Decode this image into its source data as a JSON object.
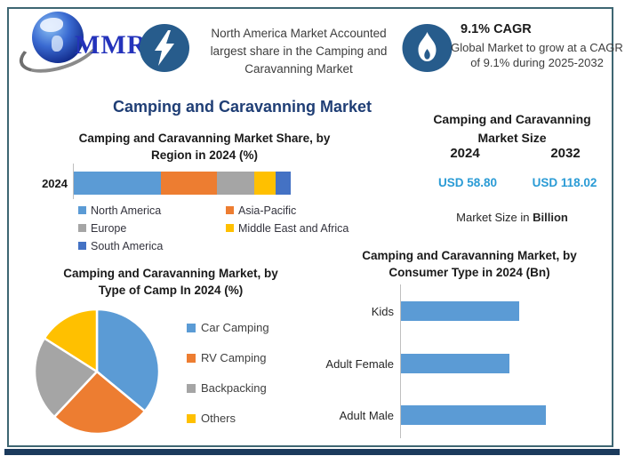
{
  "header": {
    "logo_text": "MMR",
    "badge1": {
      "icon": "lightning",
      "lines": [
        "North America Market Accounted",
        "largest share in the Camping and",
        "Caravanning Market"
      ]
    },
    "badge2": {
      "icon": "flame",
      "title": "9.1% CAGR",
      "body": "Global Market to grow at a CAGR of 9.1% during 2025-2032"
    }
  },
  "main_title": "Camping and Caravanning Market",
  "region_section": {
    "title_lines": [
      "Camping and Caravanning Market Share, by",
      "Region in 2024 (%)"
    ]
  },
  "market_size": {
    "title_lines": [
      "Camping and Caravanning",
      "Market Size"
    ],
    "columns": [
      {
        "year": "2024",
        "value": "USD 58.80"
      },
      {
        "year": "2032",
        "value": "USD 118.02"
      }
    ],
    "caption_prefix": "Market Size in",
    "caption_bold": "Billion"
  },
  "pie_section": {
    "title_lines": [
      "Camping and Caravanning Market, by",
      "Type of Camp In 2024 (%)"
    ]
  },
  "consumer_section": {
    "title_lines": [
      "Camping and Caravanning Market, by",
      "Consumer Type in 2024 (Bn)"
    ]
  },
  "colors": {
    "series_blue": "#5B9BD5",
    "series_orange": "#ED7D31",
    "series_gray": "#A5A5A5",
    "series_yellow": "#FFC000",
    "series_darkblue": "#4472C4",
    "navy_title": "#1F3E75",
    "icon_circle": "#275C8C",
    "usd_value_blue": "#2A9BD5",
    "frame_border": "#3E6672",
    "bottom_bar": "#1B3A5C"
  },
  "chart_data": [
    {
      "type": "bar",
      "subtype": "stacked-horizontal",
      "title": "Camping and Caravanning Market Share, by Region in 2024 (%)",
      "categories": [
        "2024"
      ],
      "series": [
        {
          "name": "North America",
          "color": "#5B9BD5",
          "values": [
            40
          ]
        },
        {
          "name": "Asia-Pacific",
          "color": "#ED7D31",
          "values": [
            26
          ]
        },
        {
          "name": "Europe",
          "color": "#A5A5A5",
          "values": [
            17
          ]
        },
        {
          "name": "Middle East and Africa",
          "color": "#FFC000",
          "values": [
            10
          ]
        },
        {
          "name": "South America",
          "color": "#4472C4",
          "values": [
            7
          ]
        }
      ],
      "unit": "%",
      "legend_position": "bottom"
    },
    {
      "type": "pie",
      "title": "Camping and Caravanning Market, by Type of Camp In 2024 (%)",
      "labels": [
        "Car Camping",
        "RV Camping",
        "Backpacking",
        "Others"
      ],
      "values": [
        36,
        26,
        22,
        16
      ],
      "colors": [
        "#5B9BD5",
        "#ED7D31",
        "#A5A5A5",
        "#FFC000"
      ],
      "start_angle_deg": 0,
      "unit": "%",
      "legend_position": "right"
    },
    {
      "type": "bar",
      "subtype": "horizontal",
      "title": "Camping and Caravanning Market, by Consumer Type in 2024 (Bn)",
      "categories": [
        "Kids",
        "Adult Female",
        "Adult Male"
      ],
      "values": [
        18.7,
        17.2,
        22.9
      ],
      "color": "#5B9BD5",
      "unit": "Bn",
      "xlim": [
        0,
        25
      ],
      "grid": false
    }
  ]
}
